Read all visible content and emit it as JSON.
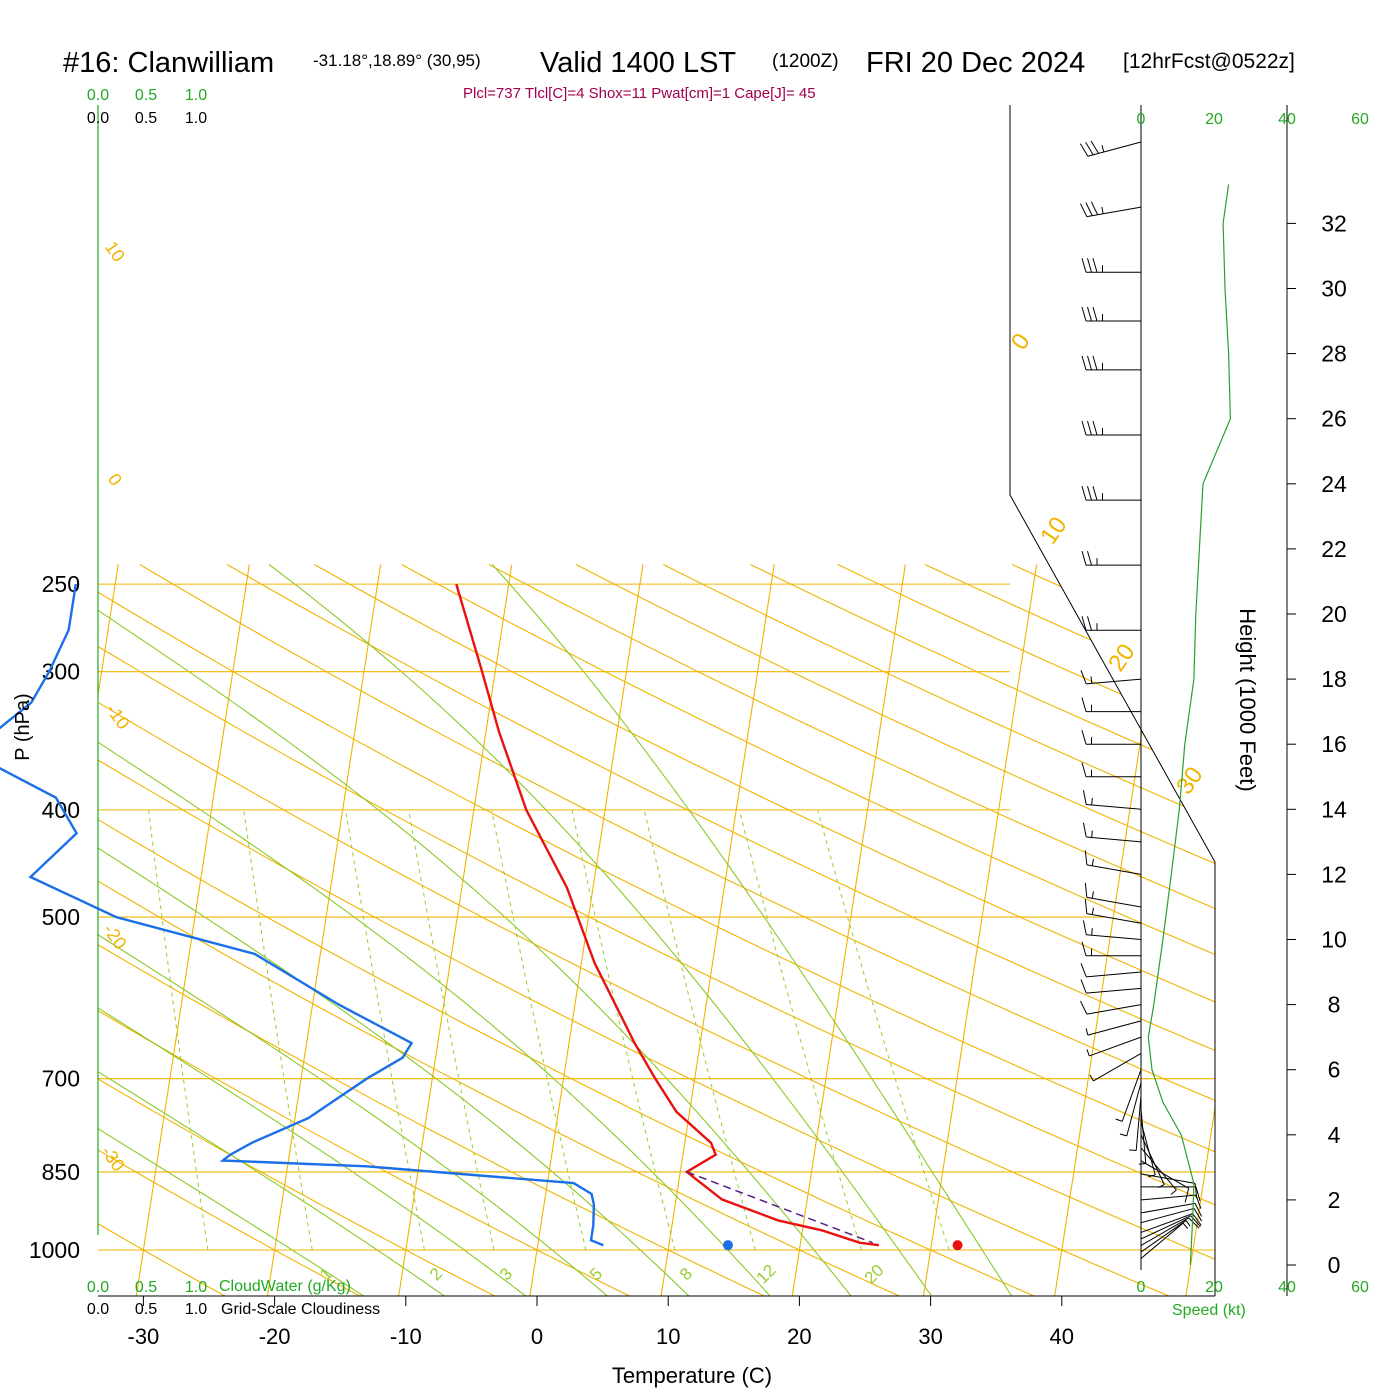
{
  "header": {
    "station": "#16: Clanwilliam",
    "coords": "-31.18°,18.89° (30,95)",
    "valid": "Valid 1400 LST",
    "zulu": "(1200Z)",
    "date": "FRI 20 Dec 2024",
    "forecast": "[12hrFcst@0522z]",
    "indices": "Plcl=737 Tlcl[C]=4 Shox=11 Pwat[cm]=1 Cape[J]= 45"
  },
  "colors": {
    "temperature": "#e8110f",
    "dewpoint": "#1b6fe8",
    "isotherm": "#f0b400",
    "dry_adiabat": "#f0b400",
    "moist_adiabat": "#8ac926",
    "mixing_ratio": "#9acd32",
    "green_text": "#22aa22",
    "magenta_text": "#a0004f",
    "parcel": "#552288"
  },
  "chart_data": {
    "type": "line",
    "xlabel": "Temperature (C)",
    "ylabel": "P (hPa)",
    "y2label": "Height (1000 Feet)",
    "x_ticks": [
      "-30",
      "-20",
      "-10",
      "0",
      "10",
      "20",
      "30",
      "40"
    ],
    "x_tick_values": [
      -30,
      -20,
      -10,
      0,
      10,
      20,
      30,
      40
    ],
    "pressure_ticks": [
      "250",
      "300",
      "400",
      "500",
      "700",
      "850",
      "1000"
    ],
    "pressure_values": [
      250,
      300,
      400,
      500,
      700,
      850,
      1000
    ],
    "height_ticks": [
      "0",
      "2",
      "4",
      "6",
      "8",
      "10",
      "12",
      "14",
      "16",
      "18",
      "20",
      "22",
      "24",
      "26",
      "28",
      "30",
      "32"
    ],
    "isotherm_labels": [
      "10",
      "0",
      "-10",
      "-20",
      "-30"
    ],
    "upper_temp_labels": [
      "0",
      "10",
      "20",
      "30"
    ],
    "mixing_ratio_labels": [
      "1",
      "2",
      "3",
      "5",
      "8",
      "12",
      "20"
    ],
    "cloud_scale_top_green": [
      "0.0",
      "0.5",
      "1.0"
    ],
    "cloud_scale_top_black": [
      "0.0",
      "0.5",
      "1.0"
    ],
    "cloud_scale_bottom_green": [
      "0.0",
      "0.5",
      "1.0"
    ],
    "cloud_scale_bottom_black": [
      "0.0",
      "0.5",
      "1.0"
    ],
    "cloudwater_label": "CloudWater (g/Kg)",
    "cloudiness_label": "Grid-Scale Cloudiness",
    "speed_label": "Speed (kt)",
    "speed_ticks_top": [
      "0",
      "20",
      "40",
      "60"
    ],
    "speed_ticks_bottom": [
      "0",
      "20",
      "40",
      "60"
    ],
    "series": [
      {
        "name": "Temperature",
        "points": [
          [
            250,
            -14
          ],
          [
            300,
            -11
          ],
          [
            340,
            -9
          ],
          [
            400,
            -6
          ],
          [
            470,
            -2
          ],
          [
            550,
            1
          ],
          [
            650,
            5
          ],
          [
            700,
            7
          ],
          [
            750,
            9
          ],
          [
            800,
            12
          ],
          [
            820,
            12.5
          ],
          [
            850,
            10.5
          ],
          [
            900,
            13.5
          ],
          [
            940,
            18
          ],
          [
            960,
            21.5
          ],
          [
            985,
            24.5
          ],
          [
            990,
            26
          ]
        ]
      },
      {
        "name": "Dewpoint",
        "points": [
          [
            250,
            -43
          ],
          [
            275,
            -43
          ],
          [
            300,
            -44
          ],
          [
            320,
            -45
          ],
          [
            345,
            -48
          ],
          [
            365,
            -47
          ],
          [
            390,
            -42
          ],
          [
            420,
            -40
          ],
          [
            460,
            -43
          ],
          [
            500,
            -36
          ],
          [
            540,
            -25
          ],
          [
            600,
            -18
          ],
          [
            650,
            -12
          ],
          [
            670,
            -12.5
          ],
          [
            700,
            -15
          ],
          [
            760,
            -19
          ],
          [
            800,
            -23
          ],
          [
            820,
            -24.5
          ],
          [
            830,
            -25
          ],
          [
            840,
            -14
          ],
          [
            870,
            2
          ],
          [
            890,
            3.5
          ],
          [
            910,
            3.8
          ],
          [
            950,
            4
          ],
          [
            980,
            4
          ],
          [
            990,
            5
          ]
        ]
      },
      {
        "name": "Parcel",
        "points": [
          [
            850,
            10.5
          ],
          [
            985,
            25.5
          ]
        ]
      }
    ],
    "surface_temperature_marker": 32,
    "surface_dewpoint_marker": 14.5,
    "surface_marker_pressure": 990,
    "height_profile_points": [
      [
        0,
        13.5
      ],
      [
        1.5,
        14.2
      ],
      [
        2.5,
        14.5
      ],
      [
        4,
        11
      ],
      [
        5,
        6
      ],
      [
        6,
        3
      ],
      [
        7,
        2
      ],
      [
        8,
        3.5
      ],
      [
        10,
        6
      ],
      [
        12,
        8.3
      ],
      [
        14,
        10.5
      ],
      [
        16,
        12
      ],
      [
        18,
        14.5
      ],
      [
        20,
        15
      ],
      [
        22,
        16
      ],
      [
        24,
        17
      ],
      [
        26,
        24.5
      ],
      [
        28,
        24
      ],
      [
        30,
        23
      ],
      [
        32,
        22.5
      ],
      [
        33.2,
        24
      ]
    ],
    "wind_barbs": [
      {
        "height": 0.2,
        "speed": 5,
        "dir": 230
      },
      {
        "height": 0.4,
        "speed": 7,
        "dir": 235
      },
      {
        "height": 0.6,
        "speed": 8,
        "dir": 240
      },
      {
        "height": 0.8,
        "speed": 9,
        "dir": 245
      },
      {
        "height": 1.0,
        "speed": 10,
        "dir": 250
      },
      {
        "height": 1.3,
        "speed": 11,
        "dir": 255
      },
      {
        "height": 1.6,
        "speed": 12,
        "dir": 260
      },
      {
        "height": 2.0,
        "speed": 12,
        "dir": 265
      },
      {
        "height": 2.4,
        "speed": 11,
        "dir": 270
      },
      {
        "height": 2.8,
        "speed": 10,
        "dir": 280
      },
      {
        "height": 3.2,
        "speed": 8,
        "dir": 300
      },
      {
        "height": 3.6,
        "speed": 6,
        "dir": 320
      },
      {
        "height": 4.0,
        "speed": 5,
        "dir": 335
      },
      {
        "height": 4.4,
        "speed": 5,
        "dir": 345
      },
      {
        "height": 4.8,
        "speed": 5,
        "dir": 355
      },
      {
        "height": 5.2,
        "speed": 5,
        "dir": 5
      },
      {
        "height": 5.6,
        "speed": 4,
        "dir": 15
      },
      {
        "height": 6.0,
        "speed": 4,
        "dir": 20
      },
      {
        "height": 6.5,
        "speed": 5,
        "dir": 60
      },
      {
        "height": 7.0,
        "speed": 6,
        "dir": 70
      },
      {
        "height": 7.5,
        "speed": 7,
        "dir": 75
      },
      {
        "height": 8.0,
        "speed": 9,
        "dir": 80
      },
      {
        "height": 8.5,
        "speed": 10,
        "dir": 85
      },
      {
        "height": 9.0,
        "speed": 12,
        "dir": 85
      },
      {
        "height": 9.5,
        "speed": 13,
        "dir": 90
      },
      {
        "height": 10.0,
        "speed": 15,
        "dir": 95
      },
      {
        "height": 10.5,
        "speed": 15,
        "dir": 100
      },
      {
        "height": 11.0,
        "speed": 15,
        "dir": 100
      },
      {
        "height": 12.0,
        "speed": 15,
        "dir": 100
      },
      {
        "height": 13.0,
        "speed": 15,
        "dir": 95
      },
      {
        "height": 14.0,
        "speed": 15,
        "dir": 95
      },
      {
        "height": 15.0,
        "speed": 15,
        "dir": 90
      },
      {
        "height": 16.0,
        "speed": 15,
        "dir": 90
      },
      {
        "height": 17.0,
        "speed": 15,
        "dir": 90
      },
      {
        "height": 18.0,
        "speed": 15,
        "dir": 85
      },
      {
        "height": 19.5,
        "speed": 25,
        "dir": 90
      },
      {
        "height": 21.5,
        "speed": 25,
        "dir": 90
      },
      {
        "height": 23.5,
        "speed": 35,
        "dir": 90
      },
      {
        "height": 25.5,
        "speed": 35,
        "dir": 90
      },
      {
        "height": 27.5,
        "speed": 35,
        "dir": 90
      },
      {
        "height": 29.0,
        "speed": 35,
        "dir": 90
      },
      {
        "height": 30.5,
        "speed": 35,
        "dir": 90
      },
      {
        "height": 32.5,
        "speed": 35,
        "dir": 80
      },
      {
        "height": 34.5,
        "speed": 35,
        "dir": 75
      }
    ]
  }
}
